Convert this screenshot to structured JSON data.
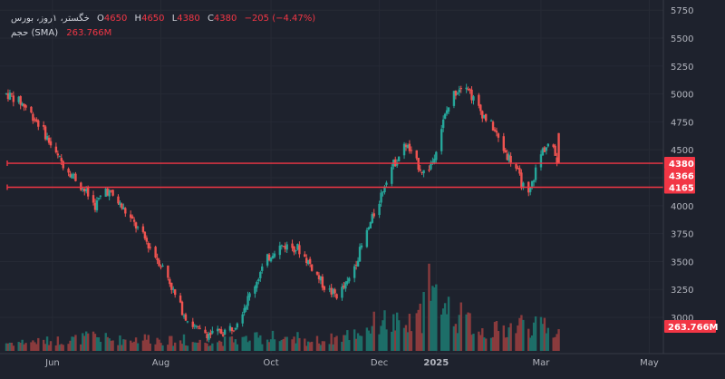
{
  "legend": {
    "symbol": "خگستر، ۱روز، بورس",
    "open_label": "O",
    "open": "4650",
    "high_label": "H",
    "high": "4650",
    "low_label": "L",
    "low": "4380",
    "close_label": "C",
    "close": "4380",
    "change": "−205 (−4.47%)",
    "volume_label": "حجم (SMA)",
    "volume_value": "263.766M"
  },
  "colors": {
    "background": "#1e222d",
    "up": "#26a69a",
    "down": "#ef5350",
    "up_volume": "#1d6e68",
    "down_volume": "#8a3b3d",
    "line": "#f23645",
    "grid": "#262a35",
    "text": "#b2b5be"
  },
  "chart_data": {
    "type": "candlestick",
    "y_axis": {
      "ticks": [
        "5750",
        "5500",
        "5250",
        "5000",
        "4750",
        "4500",
        "4250",
        "4000",
        "3750",
        "3500",
        "3250",
        "3000"
      ],
      "ylim": [
        2700,
        5760
      ]
    },
    "x_axis": {
      "ticks": [
        {
          "label": "Jun",
          "day": 26
        },
        {
          "label": "Aug",
          "day": 87
        },
        {
          "label": "Oct",
          "day": 149
        },
        {
          "label": "Dec",
          "day": 210
        },
        {
          "label": "2025",
          "day": 242
        },
        {
          "label": "Mar",
          "day": 301
        },
        {
          "label": "May",
          "day": 362
        }
      ],
      "day_zero": "2024-05-06"
    },
    "horizontal_lines": [
      {
        "price": 4380,
        "label": "4380"
      },
      {
        "price": 4165,
        "label": "4165"
      }
    ],
    "price_badges": [
      {
        "label": "4380",
        "price": 4380
      },
      {
        "label": "4366",
        "price": 4270
      },
      {
        "label": "4165",
        "price": 4165
      }
    ],
    "volume_badge": {
      "label": "263.766M"
    },
    "anchors": [
      [
        0,
        5000
      ],
      [
        3,
        4980
      ],
      [
        10,
        4900
      ],
      [
        20,
        4700
      ],
      [
        28,
        4450
      ],
      [
        35,
        4320
      ],
      [
        42,
        4180
      ],
      [
        50,
        4000
      ],
      [
        56,
        4150
      ],
      [
        62,
        4050
      ],
      [
        70,
        3880
      ],
      [
        78,
        3700
      ],
      [
        84,
        3550
      ],
      [
        90,
        3400
      ],
      [
        96,
        3150
      ],
      [
        102,
        2980
      ],
      [
        108,
        2880
      ],
      [
        115,
        2850
      ],
      [
        122,
        2870
      ],
      [
        128,
        2920
      ],
      [
        134,
        3100
      ],
      [
        140,
        3300
      ],
      [
        146,
        3500
      ],
      [
        152,
        3630
      ],
      [
        158,
        3640
      ],
      [
        164,
        3620
      ],
      [
        170,
        3500
      ],
      [
        176,
        3350
      ],
      [
        180,
        3250
      ],
      [
        186,
        3200
      ],
      [
        192,
        3300
      ],
      [
        198,
        3550
      ],
      [
        204,
        3800
      ],
      [
        210,
        4050
      ],
      [
        215,
        4300
      ],
      [
        220,
        4420
      ],
      [
        225,
        4550
      ],
      [
        230,
        4400
      ],
      [
        236,
        4280
      ],
      [
        240,
        4400
      ],
      [
        244,
        4650
      ],
      [
        248,
        4850
      ],
      [
        252,
        5000
      ],
      [
        256,
        5080
      ],
      [
        259,
        5100
      ],
      [
        262,
        4980
      ],
      [
        266,
        4870
      ],
      [
        270,
        4780
      ],
      [
        274,
        4700
      ],
      [
        278,
        4560
      ],
      [
        282,
        4450
      ],
      [
        286,
        4380
      ],
      [
        290,
        4200
      ],
      [
        294,
        4080
      ],
      [
        298,
        4320
      ],
      [
        302,
        4500
      ],
      [
        306,
        4560
      ],
      [
        311,
        4380
      ]
    ],
    "volume_anchors": [
      [
        0,
        38
      ],
      [
        20,
        45
      ],
      [
        40,
        55
      ],
      [
        50,
        70
      ],
      [
        60,
        50
      ],
      [
        80,
        60
      ],
      [
        100,
        40
      ],
      [
        120,
        45
      ],
      [
        140,
        60
      ],
      [
        150,
        55
      ],
      [
        160,
        45
      ],
      [
        180,
        50
      ],
      [
        200,
        90
      ],
      [
        210,
        140
      ],
      [
        218,
        130
      ],
      [
        225,
        110
      ],
      [
        235,
        170
      ],
      [
        242,
        250
      ],
      [
        248,
        200
      ],
      [
        255,
        160
      ],
      [
        262,
        120
      ],
      [
        270,
        90
      ],
      [
        280,
        100
      ],
      [
        290,
        130
      ],
      [
        300,
        110
      ],
      [
        311,
        90
      ]
    ],
    "volume_spikes": [
      [
        47,
        90
      ],
      [
        68,
        80
      ],
      [
        100,
        70
      ],
      [
        150,
        85
      ],
      [
        164,
        80
      ],
      [
        212,
        130
      ],
      [
        221,
        130
      ],
      [
        231,
        160
      ],
      [
        235,
        250
      ],
      [
        238,
        370
      ],
      [
        243,
        200
      ],
      [
        246,
        180
      ],
      [
        261,
        160
      ],
      [
        279,
        120
      ],
      [
        292,
        155
      ],
      [
        303,
        140
      ]
    ]
  }
}
